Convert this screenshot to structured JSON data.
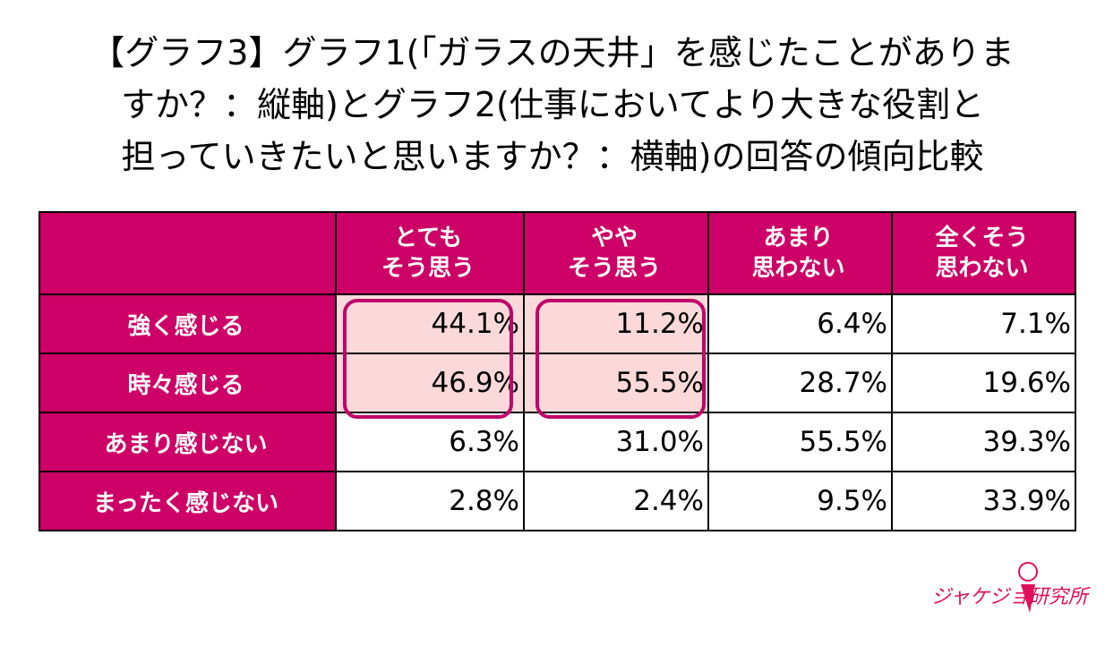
{
  "title": [
    "【グラフ3】グラフ1(「ガラスの天井」を感じたことがありま",
    "すか？：縦軸)とグラフ2(仕事においてより大きな役割と",
    "担っていきたいと思いますか？：横軸)の回答の傾向比較"
  ],
  "columns": [
    [
      "とても",
      "そう思う"
    ],
    [
      "やや",
      "そう思う"
    ],
    [
      "あまり",
      "思わない"
    ],
    [
      "全くそう",
      "思わない"
    ]
  ],
  "rows": [
    {
      "label": "強く感じる",
      "values": [
        "44.1%",
        "11.2%",
        "6.4%",
        "7.1%"
      ]
    },
    {
      "label": "時々感じる",
      "values": [
        "46.9%",
        "55.5%",
        "28.7%",
        "19.6%"
      ]
    },
    {
      "label": "あまり感じない",
      "values": [
        "6.3%",
        "31.0%",
        "55.5%",
        "39.3%"
      ]
    },
    {
      "label": "まったく感じない",
      "values": [
        "2.8%",
        "2.4%",
        "9.5%",
        "33.9%"
      ]
    }
  ],
  "logo": "ジャケジョ研究所",
  "colors": {
    "header": "#cc0066",
    "highlight": "#fbd9da",
    "box": "#c0046a"
  }
}
